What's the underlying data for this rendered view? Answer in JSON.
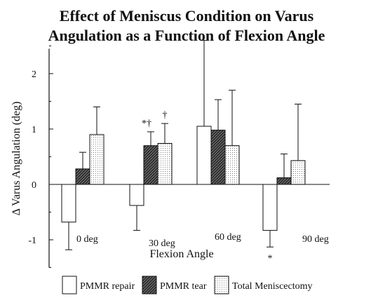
{
  "chart_data": {
    "type": "bar",
    "title_lines": [
      "Effect of Meniscus Condition on Varus",
      "Angulation as a Function of Flexion Angle"
    ],
    "xlabel": "Flexion Angle",
    "ylabel": "Δ Varus Angulation (deg)",
    "ylim": [
      -1.5,
      2.5
    ],
    "yticks": [
      -1,
      0,
      1,
      2
    ],
    "ytick_labels": [
      "-1",
      "0",
      "1",
      "2"
    ],
    "categories": [
      "0 deg",
      "30 deg",
      "60 deg",
      "90 deg"
    ],
    "series": [
      {
        "name": "PMMR repair",
        "fill": "white",
        "values": [
          -0.68,
          -0.38,
          1.05,
          -0.83
        ],
        "errors": [
          0.5,
          0.45,
          1.55,
          0.3
        ]
      },
      {
        "name": "PMMR tear",
        "fill": "hatch",
        "values": [
          0.28,
          0.7,
          0.98,
          0.12
        ],
        "errors": [
          0.3,
          0.25,
          0.55,
          0.43
        ]
      },
      {
        "name": "Total Meniscectomy",
        "fill": "dots",
        "values": [
          0.9,
          0.74,
          0.7,
          0.43
        ],
        "errors": [
          0.5,
          0.36,
          1.0,
          1.02
        ]
      }
    ],
    "annotations": [
      {
        "text": "*†",
        "category": 1,
        "series": 1
      },
      {
        "text": "†",
        "category": 1,
        "series": 2
      },
      {
        "text": "*",
        "category": 3,
        "series": 0
      }
    ],
    "legend_position": "bottom"
  }
}
